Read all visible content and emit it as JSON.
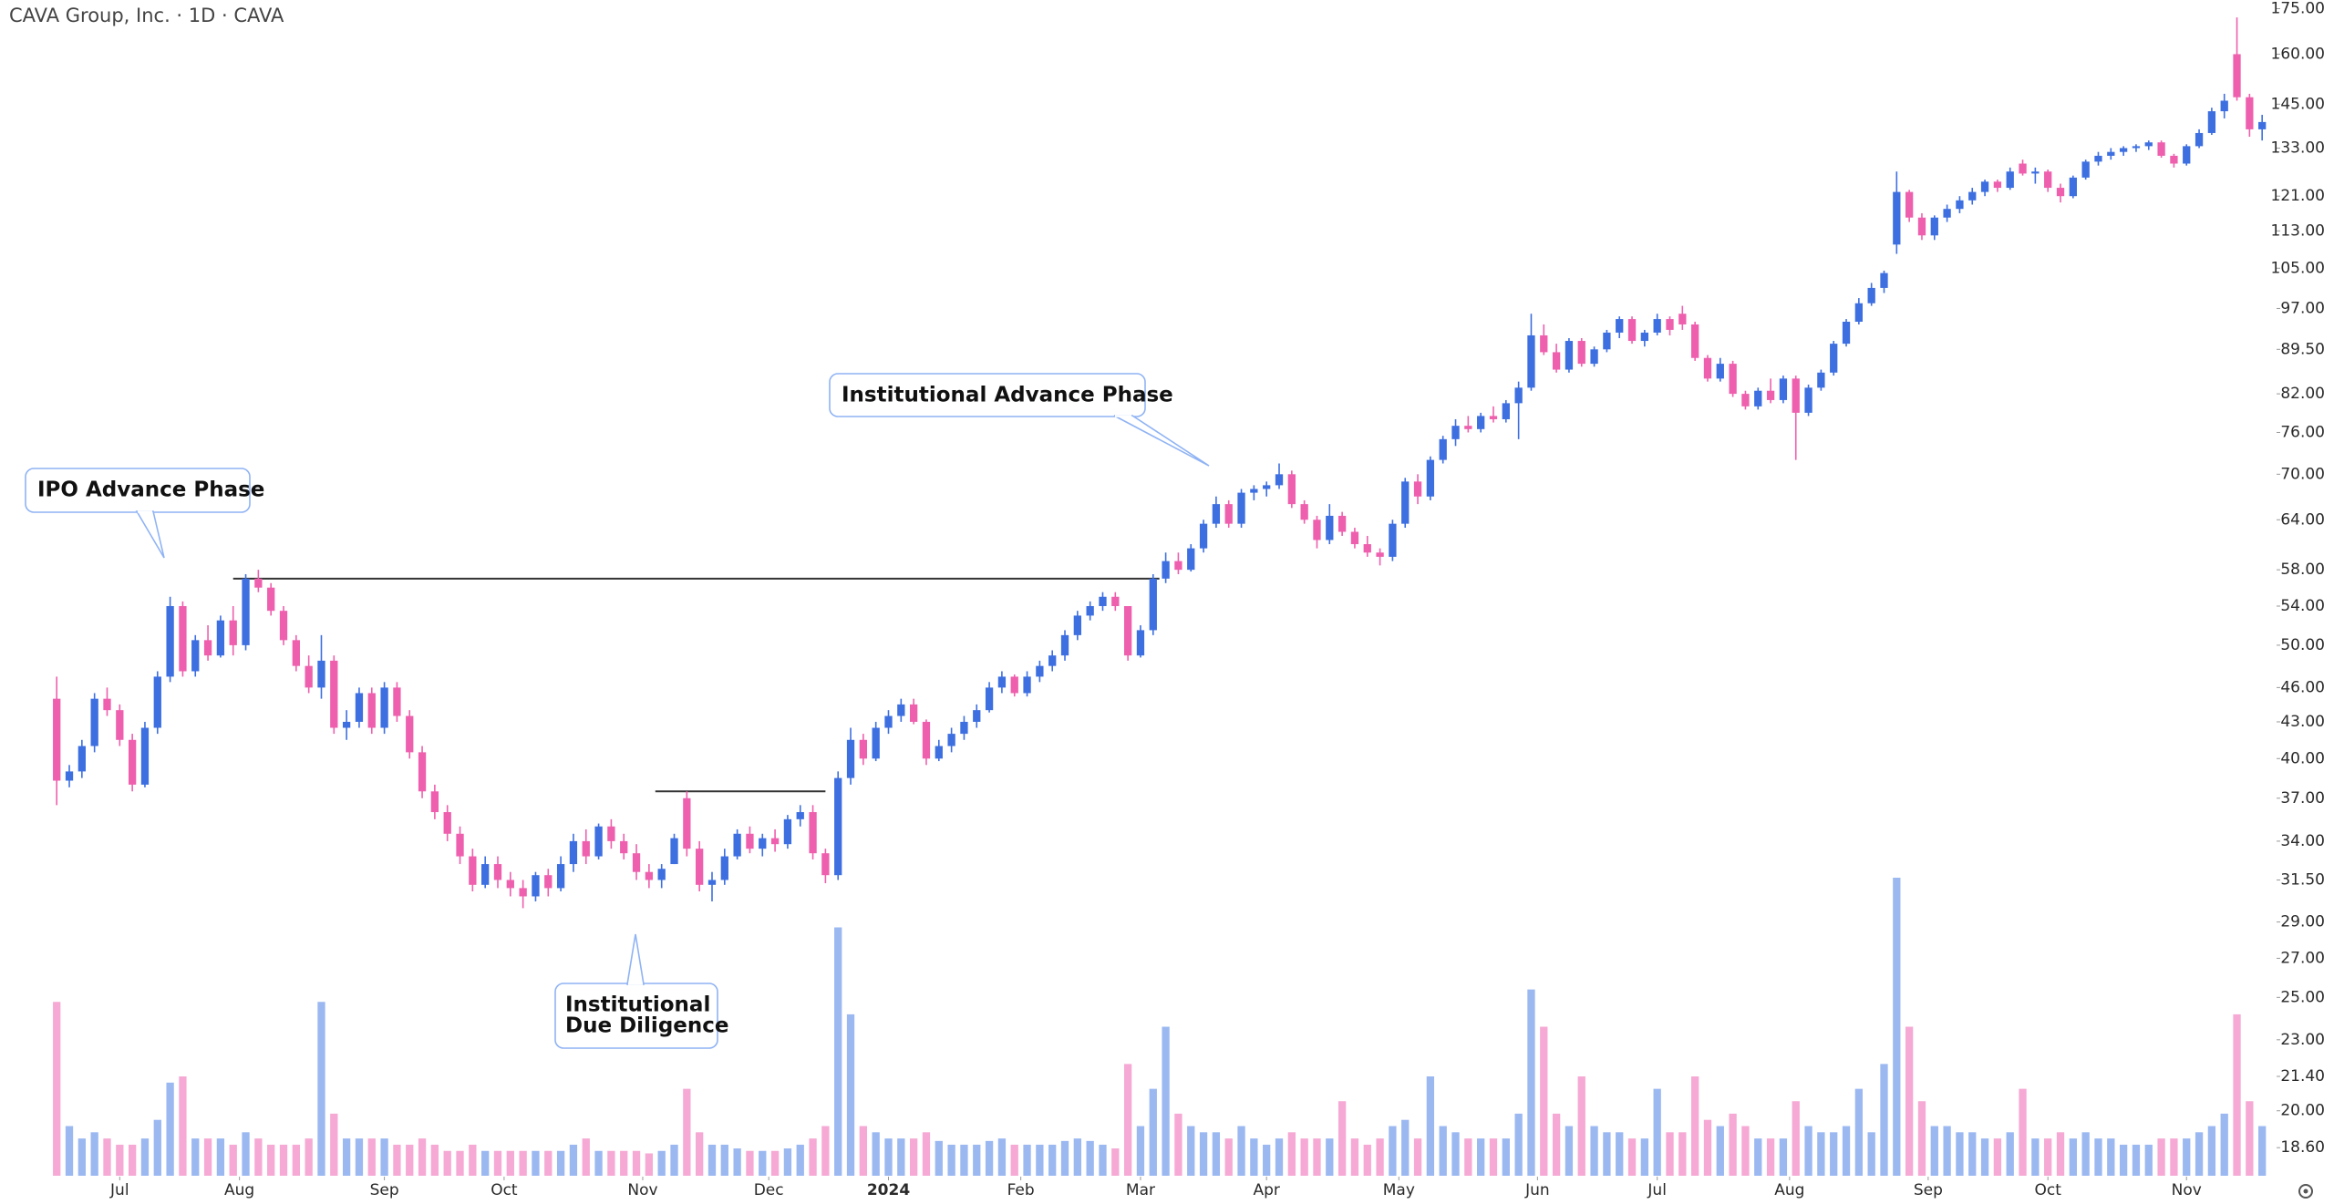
{
  "chart_data": {
    "type": "candlestick",
    "title": "CAVA Group, Inc. · 1D · CAVA",
    "log_y": true,
    "up_color": "#3d6fe0",
    "down_color": "#ee5fae",
    "up_volume_color": "#9bb8f1",
    "down_volume_color": "#f5a9d4",
    "level_color": "#333333",
    "ylim": [
      17.6,
      178
    ],
    "yticks": [
      {
        "value": 175,
        "label": "175.00"
      },
      {
        "value": 160,
        "label": "160.00"
      },
      {
        "value": 145,
        "label": "145.00"
      },
      {
        "value": 133,
        "label": "133.00"
      },
      {
        "value": 121,
        "label": "121.00"
      },
      {
        "value": 113,
        "label": "113.00"
      },
      {
        "value": 105,
        "label": "105.00"
      },
      {
        "value": 97,
        "label": "97.00"
      },
      {
        "value": 89.5,
        "label": "89.50"
      },
      {
        "value": 82,
        "label": "82.00"
      },
      {
        "value": 76,
        "label": "76.00"
      },
      {
        "value": 70,
        "label": "70.00"
      },
      {
        "value": 64,
        "label": "64.00"
      },
      {
        "value": 58,
        "label": "58.00"
      },
      {
        "value": 54,
        "label": "54.00"
      },
      {
        "value": 50,
        "label": "50.00"
      },
      {
        "value": 46,
        "label": "46.00"
      },
      {
        "value": 43,
        "label": "43.00"
      },
      {
        "value": 40,
        "label": "40.00"
      },
      {
        "value": 37,
        "label": "37.00"
      },
      {
        "value": 34,
        "label": "34.00"
      },
      {
        "value": 31.5,
        "label": "31.50"
      },
      {
        "value": 29,
        "label": "29.00"
      },
      {
        "value": 27,
        "label": "27.00"
      },
      {
        "value": 25,
        "label": "25.00"
      },
      {
        "value": 23,
        "label": "23.00"
      },
      {
        "value": 21.4,
        "label": "21.40"
      },
      {
        "value": 20,
        "label": "20.00"
      },
      {
        "value": 18.6,
        "label": "18.60"
      }
    ],
    "xlim": [
      -9,
      352
    ],
    "xticks": [
      {
        "value": 10,
        "label": "Jul"
      },
      {
        "value": 29,
        "label": "Aug"
      },
      {
        "value": 52,
        "label": "Sep"
      },
      {
        "value": 71,
        "label": "Oct"
      },
      {
        "value": 93,
        "label": "Nov"
      },
      {
        "value": 113,
        "label": "Dec"
      },
      {
        "value": 132,
        "label": "2024",
        "bold": true
      },
      {
        "value": 153,
        "label": "Feb"
      },
      {
        "value": 172,
        "label": "Mar"
      },
      {
        "value": 192,
        "label": "Apr"
      },
      {
        "value": 213,
        "label": "May"
      },
      {
        "value": 235,
        "label": "Jun"
      },
      {
        "value": 254,
        "label": "Jul"
      },
      {
        "value": 275,
        "label": "Aug"
      },
      {
        "value": 297,
        "label": "Sep"
      },
      {
        "value": 316,
        "label": "Oct"
      },
      {
        "value": 338,
        "label": "Nov"
      }
    ],
    "levels": [
      {
        "value": 57,
        "x": [
          28,
          175
        ]
      },
      {
        "value": 37.5,
        "x": [
          95,
          122
        ]
      }
    ],
    "annotations": [
      {
        "text": "IPO Advance Phase"
      },
      {
        "text": "Institutional Advance Phase"
      },
      {
        "lines": [
          "Institutional",
          "Due Diligence"
        ]
      }
    ],
    "x": [
      0,
      2,
      4,
      6,
      8,
      10,
      12,
      14,
      16,
      18,
      20,
      22,
      24,
      26,
      28,
      30,
      32,
      34,
      36,
      38,
      40,
      42,
      44,
      46,
      48,
      50,
      52,
      54,
      56,
      58,
      60,
      62,
      64,
      66,
      68,
      70,
      72,
      74,
      76,
      78,
      80,
      82,
      84,
      86,
      88,
      90,
      92,
      94,
      96,
      98,
      100,
      102,
      104,
      106,
      108,
      110,
      112,
      114,
      116,
      118,
      120,
      122,
      124,
      126,
      128,
      130,
      132,
      134,
      136,
      138,
      140,
      142,
      144,
      146,
      148,
      150,
      152,
      154,
      156,
      158,
      160,
      162,
      164,
      166,
      168,
      170,
      172,
      174,
      176,
      178,
      180,
      182,
      184,
      186,
      188,
      190,
      192,
      194,
      196,
      198,
      200,
      202,
      204,
      206,
      208,
      210,
      212,
      214,
      216,
      218,
      220,
      222,
      224,
      226,
      228,
      230,
      232,
      234,
      236,
      238,
      240,
      242,
      244,
      246,
      248,
      250,
      252,
      254,
      256,
      258,
      260,
      262,
      264,
      266,
      268,
      270,
      272,
      274,
      276,
      278,
      280,
      282,
      284,
      286,
      288,
      290,
      292,
      294,
      296,
      298,
      300,
      302,
      304,
      306,
      308,
      310,
      312,
      314,
      316,
      318,
      320,
      322,
      324,
      326,
      328,
      330,
      332,
      334,
      336,
      338,
      340,
      342,
      344,
      346,
      348,
      350
    ],
    "open": [
      45,
      38.3,
      39,
      41,
      45,
      44,
      41.5,
      38,
      42.5,
      47,
      54,
      47.5,
      50.5,
      49,
      52.5,
      50,
      57,
      56,
      53.5,
      50.5,
      48,
      46,
      48.5,
      42.5,
      43,
      45.5,
      42.5,
      46,
      43.5,
      40.5,
      37.5,
      36,
      34.5,
      33,
      31.2,
      32.5,
      31.5,
      31,
      30.5,
      31.8,
      31,
      32.5,
      34,
      33,
      35,
      34,
      33.2,
      32,
      31.5,
      32.5,
      37,
      33.5,
      31.2,
      31.5,
      33,
      34.5,
      33.5,
      34.2,
      33.8,
      35.5,
      36,
      33.2,
      31.8,
      38.5,
      41.5,
      40,
      42.5,
      43.5,
      44.5,
      43,
      40,
      41,
      42,
      43,
      44,
      46,
      47,
      45.5,
      47,
      48,
      49,
      51,
      53,
      54,
      55,
      54,
      49,
      51.5,
      57,
      59,
      58,
      60.5,
      63.5,
      66,
      63.5,
      67.5,
      68,
      68.5,
      70,
      66,
      64,
      61.5,
      64.5,
      62.5,
      61,
      60,
      59.5,
      63.5,
      69,
      67,
      72,
      75,
      77,
      76.5,
      78.5,
      78,
      80.5,
      83,
      92,
      89,
      86,
      91,
      87,
      89.5,
      92.5,
      95,
      91,
      92.5,
      95,
      96,
      94,
      88,
      84.5,
      87,
      82,
      80,
      82.5,
      81,
      84.5,
      79,
      83,
      85.5,
      90.5,
      94.5,
      98,
      101,
      110,
      122,
      116,
      112,
      116,
      118,
      120,
      122,
      124.5,
      123,
      129,
      126.5,
      127,
      123,
      121,
      125.5,
      129.5,
      131,
      132,
      133,
      133.5,
      134.5,
      131,
      129,
      133.5,
      137,
      143,
      160,
      147,
      138
    ],
    "high": [
      47,
      39.5,
      41.5,
      45.5,
      46,
      44.5,
      42,
      43,
      47.5,
      55,
      54.5,
      51,
      52,
      53,
      54,
      57.5,
      58,
      56.5,
      54,
      51,
      49,
      51,
      49,
      44,
      46,
      46,
      46.5,
      46.5,
      44,
      41,
      38,
      36.5,
      35,
      33.5,
      33,
      33,
      32,
      31.5,
      32,
      32.2,
      33,
      34.5,
      34.8,
      35.2,
      35.5,
      34.5,
      33.8,
      32.5,
      32.5,
      34.5,
      37.5,
      34,
      32,
      33.5,
      34.8,
      35,
      34.5,
      34.8,
      35.8,
      36.5,
      36.5,
      33.5,
      39,
      42.5,
      42,
      43,
      44,
      45,
      45,
      43.2,
      41.5,
      42.5,
      43.5,
      44.5,
      46.5,
      47.5,
      47.2,
      47.5,
      48.5,
      49.5,
      51.5,
      53.5,
      54.5,
      55.5,
      55.5,
      54,
      52,
      57.5,
      60,
      60,
      61,
      64,
      67,
      66.5,
      68,
      68.5,
      69,
      71.5,
      70.5,
      66.5,
      64.5,
      66,
      65,
      63,
      62,
      60.5,
      64,
      69.5,
      70,
      72.5,
      75.5,
      78,
      78.5,
      79,
      80,
      81,
      84,
      96,
      94,
      90.5,
      91.5,
      91.5,
      90,
      93,
      95.5,
      95.5,
      93,
      96,
      95.5,
      97.5,
      94.5,
      88.5,
      88,
      87.5,
      82.5,
      83,
      84.5,
      85,
      85,
      83.5,
      86,
      91,
      95,
      99,
      102,
      104.5,
      127,
      122.5,
      117,
      116.5,
      119,
      121,
      123,
      125,
      125,
      128,
      130,
      128,
      127.5,
      124,
      126,
      130,
      132,
      133,
      133.5,
      134,
      135,
      135,
      131.5,
      134,
      138,
      144,
      148,
      172,
      148,
      142
    ],
    "low": [
      36.5,
      37.8,
      38.5,
      40.5,
      43.5,
      41,
      37.5,
      37.8,
      42,
      46.5,
      47,
      47,
      48.5,
      48.8,
      49,
      49.5,
      55.5,
      53,
      50,
      47.5,
      45.5,
      45,
      42,
      41.5,
      42.5,
      42,
      42,
      43,
      40,
      37,
      35.5,
      34,
      32.5,
      30.8,
      31,
      31,
      30.5,
      29.8,
      30.2,
      30.5,
      30.8,
      32,
      32.5,
      32.8,
      33.5,
      32.8,
      31.5,
      31,
      31,
      32.5,
      33,
      30.8,
      30.2,
      31.2,
      32.8,
      33.2,
      33,
      33.3,
      33.5,
      35,
      32.8,
      31.3,
      31.5,
      38,
      39.5,
      39.8,
      42,
      43,
      42.8,
      39.5,
      39.8,
      40.5,
      41.5,
      42.5,
      43.8,
      45.5,
      45.2,
      45.2,
      46.5,
      47.5,
      48.5,
      50.5,
      52.5,
      53.5,
      53.5,
      48.5,
      48.8,
      51,
      56.5,
      57.5,
      57.8,
      60,
      63,
      63,
      63,
      66.5,
      67,
      68,
      65.5,
      63.5,
      60.5,
      61,
      62,
      60.5,
      59.5,
      58.5,
      59,
      63,
      66,
      66.5,
      71.5,
      74,
      76,
      76,
      77.5,
      77.5,
      75,
      82.5,
      88.5,
      85.5,
      85.5,
      86.5,
      86.5,
      89,
      91.5,
      90.5,
      90,
      92,
      92,
      93,
      87.5,
      84,
      84,
      81.5,
      79.5,
      79.5,
      80.5,
      80.5,
      72,
      78.5,
      82.5,
      85,
      90,
      94,
      97.5,
      100,
      108,
      115,
      111,
      111,
      115,
      117,
      119,
      121,
      122,
      122.5,
      126,
      124,
      122,
      119.5,
      120.5,
      125,
      128.5,
      130,
      131,
      132,
      132.5,
      130.5,
      128,
      128.5,
      133,
      136.5,
      141,
      146,
      136,
      135
    ],
    "close": [
      38.3,
      39,
      41,
      45,
      44,
      41.5,
      38,
      42.5,
      47,
      54,
      47.5,
      50.5,
      49,
      52.5,
      50,
      57,
      56,
      53.5,
      50.5,
      48,
      46,
      48.5,
      42.5,
      43,
      45.5,
      42.5,
      46,
      43.5,
      40.5,
      37.5,
      36,
      34.5,
      33,
      31.2,
      32.5,
      31.5,
      31,
      30.5,
      31.8,
      31,
      32.5,
      34,
      33,
      35,
      34,
      33.2,
      32,
      31.5,
      32.2,
      34.2,
      33.5,
      31.2,
      31.5,
      33,
      34.5,
      33.5,
      34.2,
      33.8,
      35.5,
      36,
      33.2,
      31.8,
      38.5,
      41.5,
      40,
      42.5,
      43.5,
      44.5,
      43,
      40,
      41,
      42,
      43,
      44,
      46,
      47,
      45.5,
      47,
      48,
      49,
      51,
      53,
      54,
      55,
      54,
      49,
      51.5,
      57,
      59,
      58,
      60.5,
      63.5,
      66,
      63.5,
      67.5,
      68,
      68.5,
      70,
      66,
      64,
      61.5,
      64.5,
      62.5,
      61,
      60,
      59.5,
      63.5,
      69,
      67,
      72,
      75,
      77,
      76.5,
      78.5,
      78,
      80.5,
      83,
      92,
      89,
      86,
      91,
      87,
      89.5,
      92.5,
      95,
      91,
      92.5,
      95,
      93,
      94,
      88,
      84.5,
      87,
      82,
      80,
      82.5,
      81,
      84.5,
      79,
      83,
      85.5,
      90.5,
      94.5,
      98,
      101,
      104,
      122,
      116,
      112,
      116,
      118,
      120,
      122,
      124.5,
      123,
      127,
      126.5,
      127,
      123,
      121,
      125.5,
      129.5,
      131,
      132,
      133,
      133.5,
      134.5,
      131,
      129,
      133.5,
      137,
      143,
      146,
      147,
      138,
      140
    ],
    "volume": [
      14,
      4,
      3,
      3.5,
      3,
      2.5,
      2.5,
      3,
      4.5,
      7.5,
      8,
      3,
      3,
      3,
      2.5,
      3.5,
      3,
      2.5,
      2.5,
      2.5,
      3,
      14,
      5,
      3,
      3,
      3,
      3,
      2.5,
      2.5,
      3,
      2.5,
      2,
      2,
      2.5,
      2,
      2,
      2,
      2,
      2,
      2,
      2,
      2.5,
      3,
      2,
      2,
      2,
      2,
      1.8,
      2,
      2.5,
      7,
      3.5,
      2.5,
      2.5,
      2.2,
      2,
      2,
      2,
      2.2,
      2.5,
      3,
      4,
      20,
      13,
      4,
      3.5,
      3,
      3,
      3,
      3.5,
      2.8,
      2.5,
      2.5,
      2.5,
      2.8,
      3,
      2.5,
      2.5,
      2.5,
      2.5,
      2.8,
      3,
      2.8,
      2.5,
      2.2,
      9,
      4,
      7,
      12,
      5,
      4,
      3.5,
      3.5,
      3,
      4,
      3,
      2.5,
      3,
      3.5,
      3,
      3,
      3,
      6,
      3,
      2.5,
      3,
      4,
      4.5,
      3,
      8,
      4,
      3.5,
      3,
      3,
      3,
      3,
      5,
      15,
      12,
      5,
      4,
      8,
      4,
      3.5,
      3.5,
      3,
      3,
      7,
      3.5,
      3.5,
      8,
      4.5,
      4,
      5,
      4,
      3,
      3,
      3,
      6,
      4,
      3.5,
      3.5,
      4,
      7,
      3.5,
      9,
      24,
      12,
      6,
      4,
      4,
      3.5,
      3.5,
      3,
      3,
      3.5,
      7,
      3,
      3,
      3.5,
      3,
      3.5,
      3,
      3,
      2.5,
      2.5,
      2.5,
      3,
      3,
      3,
      3.5,
      4,
      5,
      13,
      6,
      4
    ]
  }
}
